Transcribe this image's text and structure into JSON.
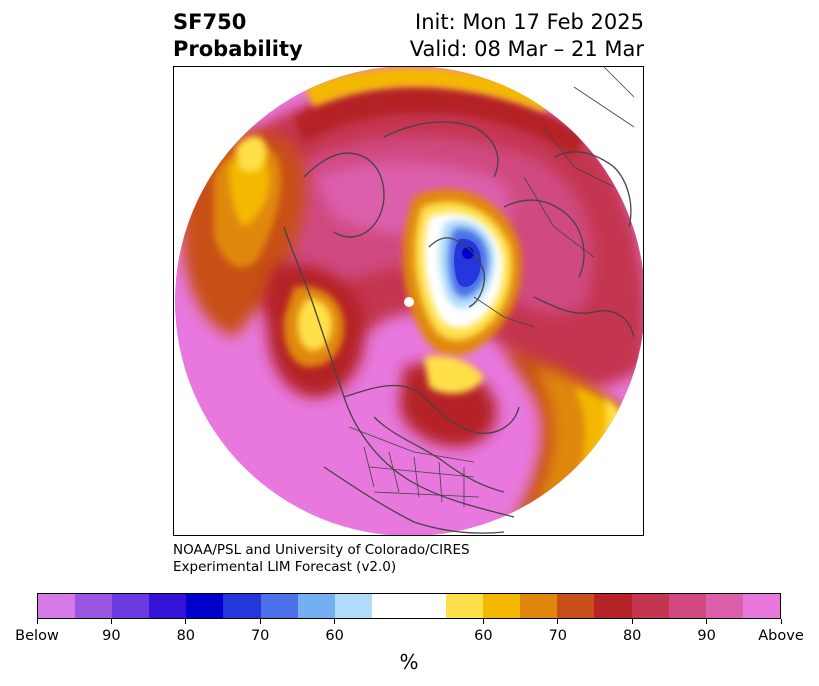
{
  "header": {
    "title_line1": "SF750",
    "title_line2": "Probability",
    "init_text": "Init: Mon 17 Feb 2025",
    "valid_text": "Valid: 08 Mar – 21 Mar"
  },
  "credit": {
    "line1": "NOAA/PSL and University of Colorado/CIRES",
    "line2": "Experimental LIM Forecast (v2.0)"
  },
  "colorbar": {
    "unit_label": "%",
    "below_colors": [
      "#d67ae8",
      "#9b55e3",
      "#6b3ae0",
      "#3513d6",
      "#0000cc",
      "#2536dc",
      "#4b70e8",
      "#73aff2",
      "#b0dcf9"
    ],
    "neutral_color": "#ffffff",
    "above_colors": [
      "#ffe04a",
      "#f4b800",
      "#e0880e",
      "#c85018",
      "#b52228",
      "#c43550",
      "#d04a80",
      "#dc5fac",
      "#e878de"
    ],
    "tick_labels": [
      "Below",
      "90",
      "80",
      "70",
      "60",
      "60",
      "70",
      "80",
      "90",
      "Above"
    ]
  },
  "map": {
    "projection": "north-polar-stereographic",
    "region": "Northern Hemisphere"
  }
}
